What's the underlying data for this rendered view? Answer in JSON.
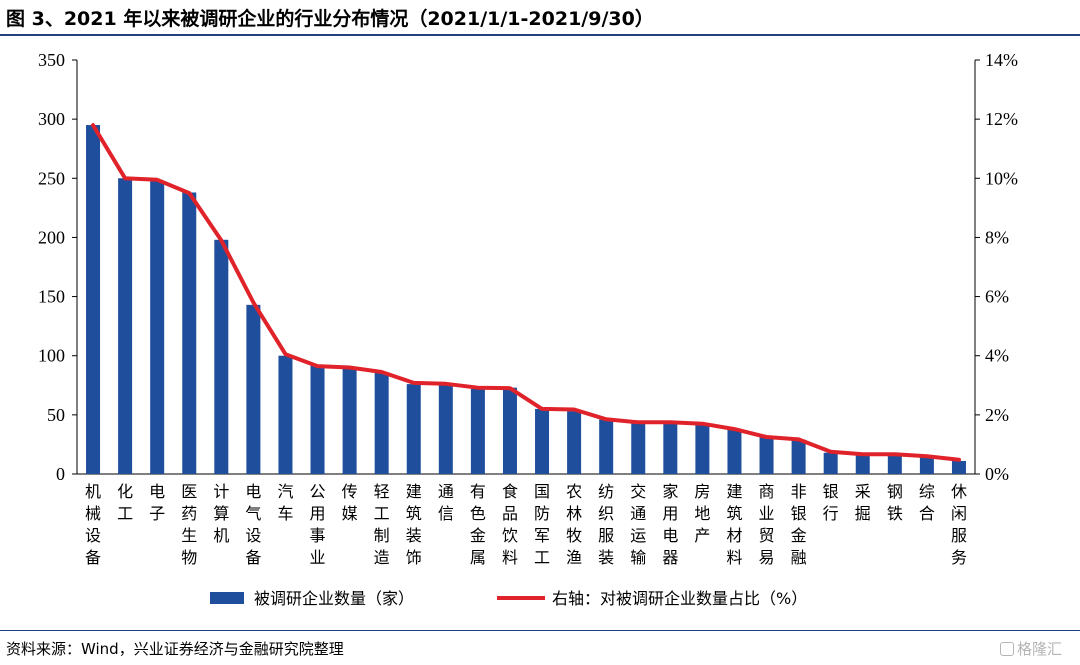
{
  "title": "图 3、2021 年以来被调研企业的行业分布情况（2021/1/1-2021/9/30）",
  "source": "资料来源：Wind，兴业证券经济与金融研究院整理",
  "watermark": "格隆汇",
  "chart_data": {
    "type": "bar",
    "categories": [
      "机械设备",
      "化工",
      "电子",
      "医药生物",
      "计算机",
      "电气设备",
      "汽车",
      "公用事业",
      "传媒",
      "轻工制造",
      "建筑装饰",
      "通信",
      "有色金属",
      "食品饮料",
      "国防军工",
      "农林牧渔",
      "纺织服装",
      "交通运输",
      "家用电器",
      "房地产",
      "建筑材料",
      "商业贸易",
      "非银金融",
      "银行",
      "采掘",
      "钢铁",
      "综合",
      "休闲服务"
    ],
    "series": [
      {
        "name": "被调研企业数量（家）",
        "type": "bar",
        "axis": "left",
        "color": "#1f4e9c",
        "values": [
          295,
          250,
          248,
          238,
          198,
          143,
          100,
          92,
          90,
          86,
          76,
          75,
          72,
          73,
          55,
          53,
          46,
          43,
          43,
          42,
          38,
          31,
          29,
          18,
          16,
          16,
          15,
          11
        ]
      },
      {
        "name": "右轴：对被调研企业数量占比（%）",
        "type": "line",
        "axis": "right",
        "color": "#e0232a",
        "values": [
          11.8,
          10.0,
          9.95,
          9.5,
          7.9,
          5.8,
          4.05,
          3.65,
          3.6,
          3.45,
          3.08,
          3.05,
          2.92,
          2.9,
          2.2,
          2.18,
          1.85,
          1.75,
          1.75,
          1.7,
          1.52,
          1.25,
          1.17,
          0.75,
          0.67,
          0.67,
          0.6,
          0.48
        ]
      }
    ],
    "y_left": {
      "min": 0,
      "max": 350,
      "ticks": [
        0,
        50,
        100,
        150,
        200,
        250,
        300,
        350
      ]
    },
    "y_right": {
      "min": 0,
      "max": 14,
      "ticks": [
        "0%",
        "2%",
        "4%",
        "6%",
        "8%",
        "10%",
        "12%",
        "14%"
      ]
    },
    "legend_position": "bottom",
    "grid": false
  }
}
